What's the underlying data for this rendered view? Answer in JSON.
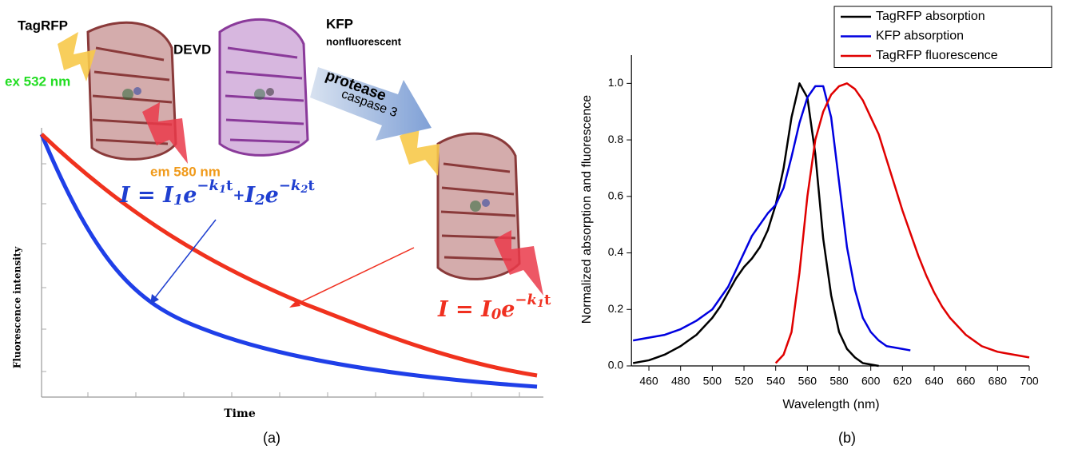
{
  "panel_a": {
    "protein_1": "TagRFP",
    "excitation": "ex 532 nm",
    "emission": "em 580 nm",
    "linker": "DEVD",
    "protein_2": "KFP",
    "protein_2_note": "nonfluorescent",
    "enzyme": "protease",
    "enzyme_name": "caspase 3",
    "equation_fret": [
      "I = ",
      "I",
      "1",
      "e",
      "−k",
      "1",
      "t",
      "+",
      "I",
      "2",
      "e",
      "−k",
      "2",
      "t"
    ],
    "equation_free": [
      "I = ",
      "I",
      "0",
      "e",
      "−k",
      "1",
      "t"
    ],
    "y_label": "Fluorescence intensity",
    "x_label": "Time",
    "panel_label": "(a)"
  },
  "panel_b_label": "(b)",
  "chart_data": {
    "type": "line",
    "x_label": "Wavelength (nm)",
    "y_label": "Normalized absorption and fluorescence",
    "x": [
      450,
      455,
      460,
      465,
      470,
      475,
      480,
      485,
      490,
      495,
      500,
      505,
      510,
      515,
      520,
      525,
      530,
      535,
      540,
      545,
      550,
      555,
      560,
      565,
      570,
      575,
      580,
      585,
      590,
      595,
      600,
      605,
      610,
      615,
      620,
      625,
      630,
      635,
      640,
      645,
      650,
      655,
      660,
      665,
      670,
      675,
      680,
      685,
      690,
      695,
      700
    ],
    "xlim": [
      450,
      700
    ],
    "xticks": [
      460,
      480,
      500,
      520,
      540,
      560,
      580,
      600,
      620,
      640,
      660,
      680,
      700
    ],
    "ylim": [
      0,
      1.1
    ],
    "yticks": [
      {
        "value": 0,
        "label": "0.0"
      },
      0.2,
      0.4,
      0.6,
      0.8,
      {
        "value": 1,
        "label": "1.0"
      }
    ],
    "legend": "top-right",
    "series": [
      {
        "name": "TagRFP absorption",
        "color": "#000000",
        "values": [
          0.01,
          0.015,
          0.02,
          0.03,
          0.04,
          0.055,
          0.07,
          0.09,
          0.11,
          0.14,
          0.17,
          0.21,
          0.26,
          0.31,
          0.35,
          0.38,
          0.42,
          0.48,
          0.57,
          0.7,
          0.88,
          1.0,
          0.95,
          0.75,
          0.45,
          0.25,
          0.12,
          0.06,
          0.03,
          0.01,
          0.005,
          0,
          null,
          null,
          null,
          null,
          null,
          null,
          null,
          null,
          null,
          null,
          null,
          null,
          null,
          null,
          null,
          null,
          null,
          null,
          null
        ]
      },
      {
        "name": "KFP absorption",
        "color": "#0000e0",
        "values": [
          0.09,
          0.095,
          0.1,
          0.105,
          0.11,
          0.12,
          0.13,
          0.145,
          0.16,
          0.18,
          0.2,
          0.24,
          0.28,
          0.34,
          0.4,
          0.46,
          0.5,
          0.54,
          0.57,
          0.63,
          0.74,
          0.86,
          0.95,
          0.99,
          0.99,
          0.88,
          0.65,
          0.42,
          0.27,
          0.17,
          0.12,
          0.09,
          0.07,
          0.065,
          0.06,
          0.055,
          null,
          null,
          null,
          null,
          null,
          null,
          null,
          null,
          null,
          null,
          null,
          null,
          null,
          null,
          null
        ]
      },
      {
        "name": "TagRFP fluorescence",
        "color": "#e00000",
        "values": [
          null,
          null,
          null,
          null,
          null,
          null,
          null,
          null,
          null,
          null,
          null,
          null,
          null,
          null,
          null,
          null,
          null,
          null,
          0.01,
          0.04,
          0.12,
          0.33,
          0.6,
          0.8,
          0.9,
          0.96,
          0.99,
          1.0,
          0.98,
          0.94,
          0.88,
          0.82,
          0.73,
          0.64,
          0.55,
          0.47,
          0.39,
          0.32,
          0.26,
          0.21,
          0.17,
          0.14,
          0.11,
          0.09,
          0.07,
          0.06,
          0.05,
          0.045,
          0.04,
          0.035,
          0.03
        ]
      }
    ]
  }
}
